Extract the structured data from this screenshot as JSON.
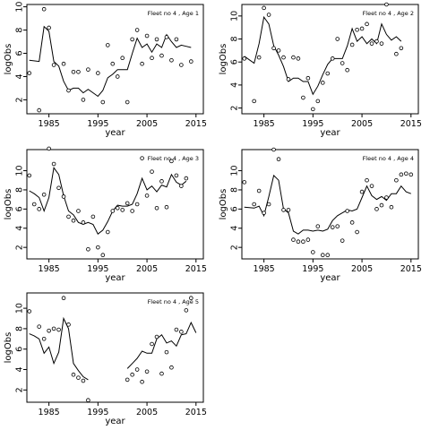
{
  "chart_data": [
    {
      "type": "scatter",
      "title": "Fleet no 4 , Age 1",
      "xlabel": "year",
      "ylabel": "logObs",
      "xlim": [
        1980.5,
        2016.5
      ],
      "ylim": [
        0.8,
        10.2
      ],
      "xticks": [
        1985,
        1995,
        2005,
        2015
      ],
      "yticks": [
        2,
        4,
        6,
        8,
        10
      ],
      "points": [
        [
          1981,
          4.3
        ],
        [
          1983,
          1.1
        ],
        [
          1984,
          9.8
        ],
        [
          1985,
          8.2
        ],
        [
          1986,
          5.0
        ],
        [
          1988,
          5.1
        ],
        [
          1989,
          2.8
        ],
        [
          1990,
          4.4
        ],
        [
          1991,
          4.4
        ],
        [
          1992,
          2.0
        ],
        [
          1993,
          4.6
        ],
        [
          1995,
          4.3
        ],
        [
          1996,
          1.8
        ],
        [
          1997,
          6.7
        ],
        [
          1998,
          5.1
        ],
        [
          1999,
          4.0
        ],
        [
          2000,
          5.6
        ],
        [
          2001,
          1.8
        ],
        [
          2002,
          7.2
        ],
        [
          2003,
          8.0
        ],
        [
          2004,
          5.1
        ],
        [
          2005,
          7.5
        ],
        [
          2006,
          5.6
        ],
        [
          2007,
          7.2
        ],
        [
          2008,
          5.8
        ],
        [
          2009,
          7.4
        ],
        [
          2010,
          5.4
        ],
        [
          2011,
          7.2
        ],
        [
          2012,
          5.0
        ],
        [
          2014,
          5.3
        ]
      ],
      "line": [
        [
          1981,
          5.4
        ],
        [
          1983,
          5.3
        ],
        [
          1984,
          8.3
        ],
        [
          1985,
          7.9
        ],
        [
          1986,
          5.3
        ],
        [
          1987,
          4.9
        ],
        [
          1988,
          3.6
        ],
        [
          1989,
          2.8
        ],
        [
          1990,
          3.0
        ],
        [
          1991,
          3.0
        ],
        [
          1992,
          2.6
        ],
        [
          1993,
          2.9
        ],
        [
          1994,
          2.6
        ],
        [
          1995,
          2.3
        ],
        [
          1996,
          2.8
        ],
        [
          1997,
          3.9
        ],
        [
          1998,
          4.2
        ],
        [
          1999,
          4.6
        ],
        [
          2000,
          4.6
        ],
        [
          2001,
          4.6
        ],
        [
          2002,
          6.0
        ],
        [
          2003,
          7.3
        ],
        [
          2004,
          6.5
        ],
        [
          2005,
          6.8
        ],
        [
          2006,
          6.1
        ],
        [
          2007,
          6.8
        ],
        [
          2008,
          6.5
        ],
        [
          2009,
          7.6
        ],
        [
          2010,
          7.0
        ],
        [
          2011,
          6.5
        ],
        [
          2012,
          6.7
        ],
        [
          2013,
          6.6
        ],
        [
          2014,
          6.5
        ]
      ]
    },
    {
      "type": "scatter",
      "title": "Fleet no 4 , Age 2",
      "xlabel": "year",
      "ylabel": "logObs",
      "xlim": [
        1980.5,
        2016.5
      ],
      "ylim": [
        1.5,
        11.0
      ],
      "xticks": [
        1985,
        1995,
        2005,
        2015
      ],
      "yticks": [
        2,
        4,
        6,
        8,
        10
      ],
      "points": [
        [
          1981,
          6.3
        ],
        [
          1983,
          2.6
        ],
        [
          1984,
          6.4
        ],
        [
          1985,
          10.7
        ],
        [
          1986,
          10.1
        ],
        [
          1987,
          7.2
        ],
        [
          1988,
          7.0
        ],
        [
          1989,
          6.4
        ],
        [
          1990,
          4.5
        ],
        [
          1991,
          6.4
        ],
        [
          1992,
          6.3
        ],
        [
          1993,
          2.9
        ],
        [
          1994,
          4.6
        ],
        [
          1995,
          1.9
        ],
        [
          1996,
          2.6
        ],
        [
          1997,
          4.2
        ],
        [
          1998,
          5.0
        ],
        [
          1999,
          6.3
        ],
        [
          2000,
          8.0
        ],
        [
          2001,
          5.9
        ],
        [
          2002,
          5.3
        ],
        [
          2003,
          7.5
        ],
        [
          2004,
          8.8
        ],
        [
          2005,
          8.9
        ],
        [
          2006,
          9.3
        ],
        [
          2007,
          7.6
        ],
        [
          2008,
          7.8
        ],
        [
          2009,
          7.6
        ],
        [
          2010,
          11.0
        ],
        [
          2012,
          6.7
        ],
        [
          2013,
          7.2
        ]
      ],
      "line": [
        [
          1981,
          6.5
        ],
        [
          1983,
          5.9
        ],
        [
          1984,
          7.6
        ],
        [
          1985,
          9.9
        ],
        [
          1986,
          9.3
        ],
        [
          1987,
          7.4
        ],
        [
          1988,
          6.6
        ],
        [
          1989,
          5.6
        ],
        [
          1990,
          4.3
        ],
        [
          1991,
          4.6
        ],
        [
          1992,
          4.6
        ],
        [
          1993,
          4.3
        ],
        [
          1994,
          4.3
        ],
        [
          1995,
          3.2
        ],
        [
          1996,
          3.9
        ],
        [
          1997,
          4.9
        ],
        [
          1998,
          5.8
        ],
        [
          1999,
          6.3
        ],
        [
          2000,
          6.3
        ],
        [
          2001,
          6.3
        ],
        [
          2002,
          7.4
        ],
        [
          2003,
          8.9
        ],
        [
          2004,
          7.8
        ],
        [
          2005,
          8.2
        ],
        [
          2006,
          7.6
        ],
        [
          2007,
          8.0
        ],
        [
          2008,
          7.6
        ],
        [
          2009,
          9.3
        ],
        [
          2010,
          8.4
        ],
        [
          2011,
          7.9
        ],
        [
          2012,
          8.2
        ],
        [
          2013,
          7.8
        ]
      ]
    },
    {
      "type": "scatter",
      "title": "Fleet no 4 , Age 3",
      "xlabel": "year",
      "ylabel": "logObs",
      "xlim": [
        1980.5,
        2016.5
      ],
      "ylim": [
        0.8,
        12.2
      ],
      "xticks": [
        1985,
        1995,
        2005,
        2015
      ],
      "yticks": [
        2,
        4,
        6,
        8,
        10
      ],
      "points": [
        [
          1981,
          9.5
        ],
        [
          1982,
          6.5
        ],
        [
          1983,
          6.0
        ],
        [
          1984,
          7.5
        ],
        [
          1985,
          12.3
        ],
        [
          1986,
          10.7
        ],
        [
          1987,
          8.2
        ],
        [
          1988,
          7.3
        ],
        [
          1989,
          5.2
        ],
        [
          1990,
          4.8
        ],
        [
          1991,
          5.8
        ],
        [
          1992,
          4.6
        ],
        [
          1993,
          1.8
        ],
        [
          1994,
          5.2
        ],
        [
          1995,
          2.0
        ],
        [
          1996,
          1.2
        ],
        [
          1997,
          3.6
        ],
        [
          1998,
          5.8
        ],
        [
          1999,
          6.1
        ],
        [
          2000,
          5.9
        ],
        [
          2001,
          6.6
        ],
        [
          2002,
          5.8
        ],
        [
          2003,
          6.5
        ],
        [
          2004,
          11.3
        ],
        [
          2005,
          7.4
        ],
        [
          2006,
          9.9
        ],
        [
          2007,
          6.1
        ],
        [
          2008,
          8.9
        ],
        [
          2009,
          6.2
        ],
        [
          2010,
          11.0
        ],
        [
          2011,
          9.5
        ],
        [
          2012,
          8.4
        ],
        [
          2013,
          9.2
        ]
      ],
      "line": [
        [
          1981,
          7.9
        ],
        [
          1982,
          7.6
        ],
        [
          1983,
          7.2
        ],
        [
          1984,
          5.8
        ],
        [
          1985,
          7.2
        ],
        [
          1986,
          10.3
        ],
        [
          1987,
          9.6
        ],
        [
          1988,
          7.4
        ],
        [
          1989,
          5.8
        ],
        [
          1990,
          5.4
        ],
        [
          1991,
          4.6
        ],
        [
          1992,
          4.4
        ],
        [
          1993,
          4.6
        ],
        [
          1994,
          4.4
        ],
        [
          1995,
          3.4
        ],
        [
          1996,
          3.8
        ],
        [
          1997,
          4.7
        ],
        [
          1998,
          5.8
        ],
        [
          1999,
          6.4
        ],
        [
          2000,
          6.3
        ],
        [
          2001,
          6.3
        ],
        [
          2002,
          6.5
        ],
        [
          2003,
          7.6
        ],
        [
          2004,
          9.2
        ],
        [
          2005,
          8.0
        ],
        [
          2006,
          8.4
        ],
        [
          2007,
          7.8
        ],
        [
          2008,
          8.5
        ],
        [
          2009,
          8.3
        ],
        [
          2010,
          9.6
        ],
        [
          2011,
          8.8
        ],
        [
          2012,
          8.5
        ],
        [
          2013,
          8.9
        ]
      ]
    },
    {
      "type": "scatter",
      "title": "Fleet no 4 , Age 4",
      "xlabel": "year",
      "ylabel": "logObs",
      "xlim": [
        1980.5,
        2016.5
      ],
      "ylim": [
        0.8,
        12.2
      ],
      "xticks": [
        1985,
        1995,
        2005,
        2015
      ],
      "yticks": [
        2,
        4,
        6,
        8,
        10
      ],
      "points": [
        [
          1981,
          8.8
        ],
        [
          1983,
          6.5
        ],
        [
          1984,
          7.9
        ],
        [
          1985,
          5.6
        ],
        [
          1986,
          6.5
        ],
        [
          1987,
          12.2
        ],
        [
          1988,
          11.2
        ],
        [
          1989,
          5.9
        ],
        [
          1990,
          5.9
        ],
        [
          1991,
          2.8
        ],
        [
          1992,
          2.6
        ],
        [
          1993,
          2.6
        ],
        [
          1994,
          2.8
        ],
        [
          1995,
          1.5
        ],
        [
          1996,
          4.2
        ],
        [
          1997,
          1.2
        ],
        [
          1998,
          1.2
        ],
        [
          1999,
          4.1
        ],
        [
          2000,
          4.2
        ],
        [
          2001,
          2.7
        ],
        [
          2002,
          5.8
        ],
        [
          2003,
          4.6
        ],
        [
          2004,
          3.6
        ],
        [
          2005,
          7.8
        ],
        [
          2006,
          9.0
        ],
        [
          2007,
          8.4
        ],
        [
          2008,
          6.0
        ],
        [
          2009,
          6.4
        ],
        [
          2010,
          7.2
        ],
        [
          2011,
          6.2
        ],
        [
          2012,
          9.0
        ],
        [
          2013,
          9.6
        ],
        [
          2014,
          9.7
        ],
        [
          2015,
          9.6
        ]
      ],
      "line": [
        [
          1981,
          6.2
        ],
        [
          1983,
          6.1
        ],
        [
          1984,
          6.3
        ],
        [
          1985,
          5.3
        ],
        [
          1986,
          7.3
        ],
        [
          1987,
          9.5
        ],
        [
          1988,
          9.0
        ],
        [
          1989,
          6.0
        ],
        [
          1990,
          5.6
        ],
        [
          1991,
          3.7
        ],
        [
          1992,
          3.4
        ],
        [
          1993,
          3.8
        ],
        [
          1994,
          3.8
        ],
        [
          1995,
          3.7
        ],
        [
          1996,
          3.8
        ],
        [
          1997,
          3.7
        ],
        [
          1998,
          3.9
        ],
        [
          1999,
          4.8
        ],
        [
          2000,
          5.3
        ],
        [
          2001,
          5.6
        ],
        [
          2002,
          5.9
        ],
        [
          2003,
          5.8
        ],
        [
          2004,
          6.0
        ],
        [
          2005,
          7.2
        ],
        [
          2006,
          8.4
        ],
        [
          2007,
          7.4
        ],
        [
          2008,
          7.0
        ],
        [
          2009,
          7.3
        ],
        [
          2010,
          6.9
        ],
        [
          2011,
          7.6
        ],
        [
          2012,
          7.6
        ],
        [
          2013,
          8.4
        ],
        [
          2014,
          7.8
        ],
        [
          2015,
          7.6
        ]
      ]
    },
    {
      "type": "scatter",
      "title": "Fleet no 4 , Age 5",
      "xlabel": "year",
      "ylabel": "logObs",
      "xlim": [
        1980.5,
        2016.5
      ],
      "ylim": [
        0.8,
        11.5
      ],
      "xticks": [
        1985,
        1995,
        2005,
        2015
      ],
      "yticks": [
        2,
        4,
        6,
        8,
        10
      ],
      "points": [
        [
          1981,
          9.7
        ],
        [
          1983,
          8.2
        ],
        [
          1984,
          7.0
        ],
        [
          1985,
          7.8
        ],
        [
          1986,
          8.0
        ],
        [
          1987,
          7.9
        ],
        [
          1988,
          11.0
        ],
        [
          1989,
          8.4
        ],
        [
          1990,
          3.5
        ],
        [
          1991,
          3.2
        ],
        [
          1992,
          2.9
        ],
        [
          1993,
          1.0
        ],
        [
          2001,
          3.0
        ],
        [
          2002,
          3.5
        ],
        [
          2003,
          4.0
        ],
        [
          2004,
          2.8
        ],
        [
          2005,
          3.8
        ],
        [
          2006,
          6.5
        ],
        [
          2007,
          7.2
        ],
        [
          2008,
          3.6
        ],
        [
          2009,
          5.7
        ],
        [
          2010,
          4.2
        ],
        [
          2011,
          7.9
        ],
        [
          2012,
          7.7
        ],
        [
          2013,
          9.8
        ],
        [
          2014,
          11.0
        ]
      ],
      "line": [
        [
          1981,
          7.5
        ],
        [
          1982,
          7.3
        ],
        [
          1983,
          7.0
        ],
        [
          1984,
          5.6
        ],
        [
          1985,
          6.2
        ],
        [
          1986,
          4.6
        ],
        [
          1987,
          5.7
        ],
        [
          1988,
          9.0
        ],
        [
          1989,
          8.0
        ],
        [
          1990,
          4.6
        ],
        [
          1991,
          3.9
        ],
        [
          1992,
          3.3
        ],
        [
          1993,
          3.0
        ],
        [
          2001,
          4.1
        ],
        [
          2002,
          4.6
        ],
        [
          2003,
          5.1
        ],
        [
          2004,
          5.8
        ],
        [
          2005,
          5.6
        ],
        [
          2006,
          5.6
        ],
        [
          2007,
          7.0
        ],
        [
          2008,
          7.4
        ],
        [
          2009,
          6.6
        ],
        [
          2010,
          6.8
        ],
        [
          2011,
          6.3
        ],
        [
          2012,
          7.4
        ],
        [
          2013,
          7.5
        ],
        [
          2014,
          8.6
        ],
        [
          2015,
          7.6
        ]
      ]
    }
  ]
}
